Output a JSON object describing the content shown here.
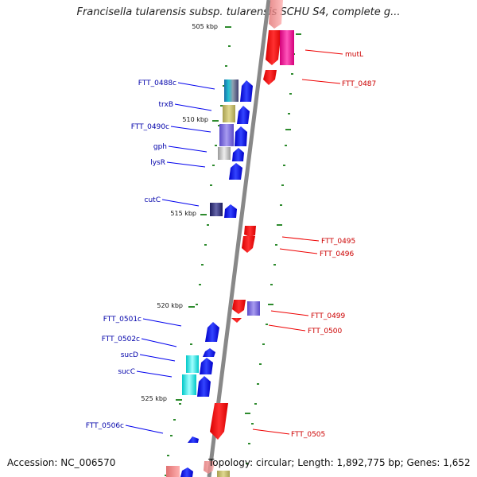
{
  "title": "Francisella tularensis subsp. tularensis SCHU S4, complete g...",
  "footer": {
    "accession": "Accession: NC_006570",
    "topology": "Topology: circular; Length: 1,892,775 bp; Genes: 1,652"
  },
  "ticks": [
    "505 kbp",
    "510 kbp",
    "515 kbp",
    "520 kbp",
    "525 kbp"
  ],
  "left_labels": [
    "FTT_0488c",
    "trxB",
    "FTT_0490c",
    "gph",
    "lysR",
    "cutC",
    "FTT_0501c",
    "FTT_0502c",
    "sucD",
    "sucC",
    "FTT_0506c"
  ],
  "right_labels": [
    "mutL",
    "FTT_0487",
    "FTT_0495",
    "FTT_0496",
    "FTT_0499",
    "FTT_0500",
    "FTT_0505"
  ],
  "colors": {
    "forward_strand": "#0000ee",
    "reverse_strand": "#ee0000",
    "forward_label": "#0000aa",
    "reverse_label": "#cc0000",
    "backbone": "#888888",
    "dots": "#2e8b2e"
  }
}
